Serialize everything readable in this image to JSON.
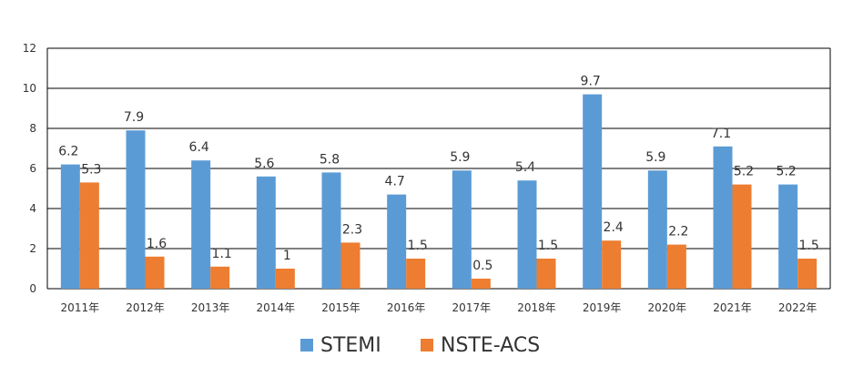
{
  "chart_data": {
    "type": "bar",
    "title": "",
    "xlabel": "",
    "ylabel": "",
    "categories": [
      "2011年",
      "2012年",
      "2013年",
      "2014年",
      "2015年",
      "2016年",
      "2017年",
      "2018年",
      "2019年",
      "2020年",
      "2021年",
      "2022年"
    ],
    "series": [
      {
        "name": "STEMI",
        "color": "#5b9bd5",
        "values": [
          6.2,
          7.9,
          6.4,
          5.6,
          5.8,
          4.7,
          5.9,
          5.4,
          9.7,
          5.9,
          7.1,
          5.2
        ]
      },
      {
        "name": "NSTE-ACS",
        "color": "#ed7d31",
        "values": [
          5.3,
          1.6,
          1.1,
          1,
          2.3,
          1.5,
          0.5,
          1.5,
          2.4,
          2.2,
          5.2,
          1.5
        ]
      }
    ],
    "ylim": [
      0,
      12
    ],
    "yticks": [
      0,
      2,
      4,
      6,
      8,
      10,
      12
    ],
    "grid": true,
    "legend_position": "bottom"
  }
}
